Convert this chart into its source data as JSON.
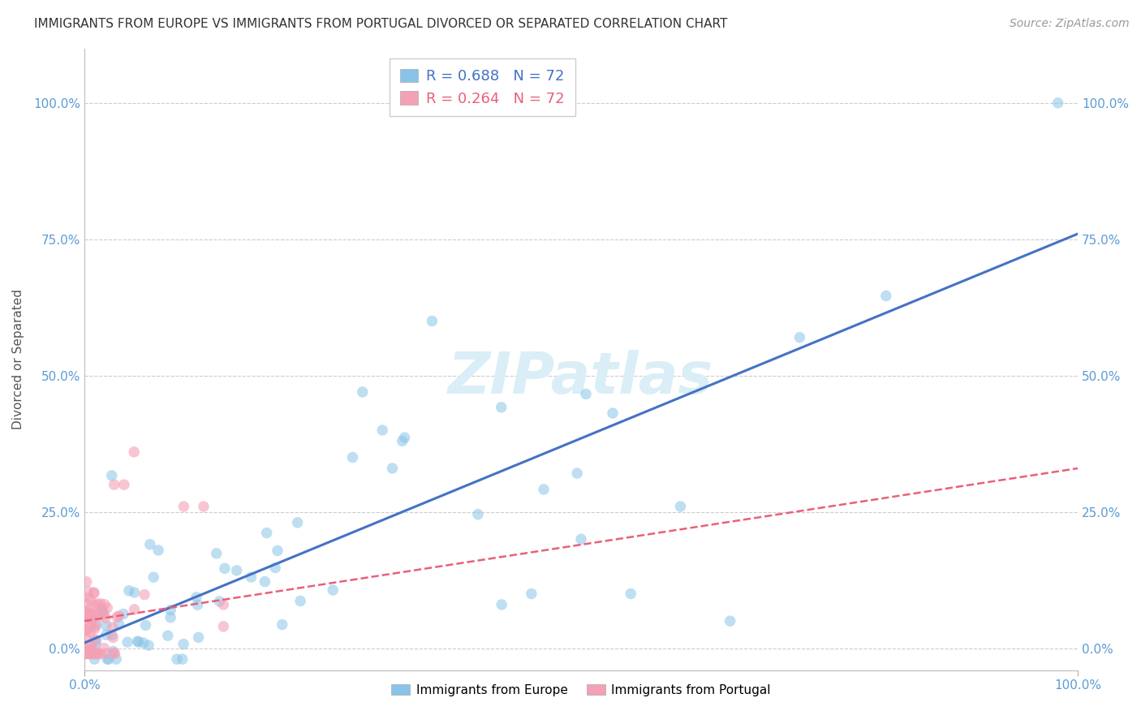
{
  "title": "IMMIGRANTS FROM EUROPE VS IMMIGRANTS FROM PORTUGAL DIVORCED OR SEPARATED CORRELATION CHART",
  "source": "Source: ZipAtlas.com",
  "ylabel": "Divorced or Separated",
  "xlabel": "",
  "xlim": [
    0.0,
    1.0
  ],
  "ylim": [
    -0.04,
    1.1
  ],
  "ytick_positions": [
    0.0,
    0.25,
    0.5,
    0.75,
    1.0
  ],
  "ytick_labels": [
    "0.0%",
    "25.0%",
    "50.0%",
    "75.0%",
    "100.0%"
  ],
  "xtick_positions": [
    0.0,
    1.0
  ],
  "xtick_labels": [
    "0.0%",
    "100.0%"
  ],
  "europe_color": "#89C4E8",
  "portugal_color": "#F4A0B5",
  "europe_line_color": "#4472C4",
  "portugal_line_color": "#E8607A",
  "legend_r_europe": "0.688",
  "legend_n_europe": "72",
  "legend_r_portugal": "0.264",
  "legend_n_portugal": "72",
  "title_fontsize": 11,
  "axis_label_fontsize": 11,
  "tick_fontsize": 11,
  "source_fontsize": 10,
  "legend_fontsize": 13,
  "watermark_fontsize": 52,
  "watermark_color": "#DAEEF7",
  "background_color": "#FFFFFF",
  "grid_color": "#CCCCCC",
  "tick_color": "#5B9BD5",
  "europe_line_slope": 0.75,
  "europe_line_intercept": 0.01,
  "portugal_line_slope": 0.28,
  "portugal_line_intercept": 0.05
}
